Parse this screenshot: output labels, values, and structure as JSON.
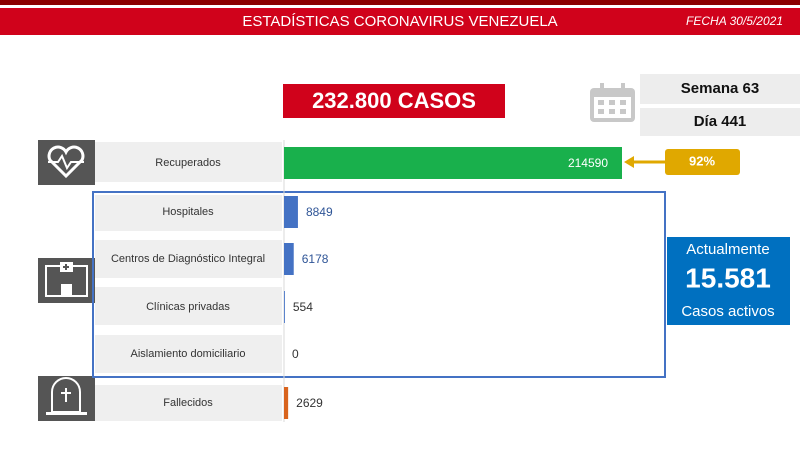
{
  "header": {
    "title": "ESTADÍSTICAS CORONAVIRUS VENEZUELA",
    "date": "FECHA 30/5/2021"
  },
  "total_cases": "232.800 CASOS",
  "week": "Semana 63",
  "day": "Día 441",
  "recovered_share": "92%",
  "active": {
    "top": "Actualmente",
    "value": "15.581",
    "bottom": "Casos activos"
  },
  "chart_data": {
    "type": "bar",
    "orientation": "horizontal",
    "categories": [
      "Recuperados",
      "Hospitales",
      "Centros de Diagnóstico Integral",
      "Clínicas privadas",
      "Aislamiento domiciliario",
      "Fallecidos"
    ],
    "values": [
      214590,
      8849,
      6178,
      554,
      0,
      2629
    ],
    "colors": [
      "#19b04c",
      "#4472c4",
      "#4472c4",
      "#4472c4",
      "#4472c4",
      "#d9641e"
    ]
  }
}
